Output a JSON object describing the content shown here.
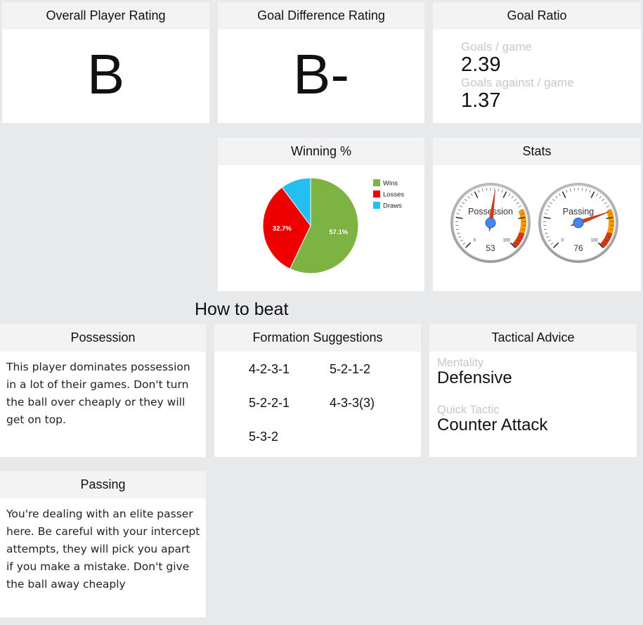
{
  "overall": {
    "title": "Overall Player Rating",
    "grade": "B"
  },
  "goal_diff": {
    "title": "Goal Difference Rating",
    "grade": "B-"
  },
  "goal_ratio": {
    "title": "Goal Ratio",
    "goals_label": "Goals / game",
    "goals_value": "2.39",
    "against_label": "Goals against / game",
    "against_value": "1.37"
  },
  "winning": {
    "title": "Winning %"
  },
  "stats": {
    "title": "Stats",
    "gauges": [
      {
        "label": "Possession",
        "value": "53",
        "min": "0",
        "max": "100"
      },
      {
        "label": "Passing",
        "value": "76",
        "min": "0",
        "max": "100"
      }
    ]
  },
  "how_to_beat": {
    "title": "How to beat"
  },
  "possession": {
    "title": "Possession",
    "text": "This player dominates possession in a lot of their games. Don't turn the ball over cheaply or they will get on top."
  },
  "formations": {
    "title": "Formation Suggestions",
    "items": [
      "4-2-3-1",
      "5-2-1-2",
      "5-2-2-1",
      "4-3-3(3)",
      "5-3-2"
    ]
  },
  "tactical": {
    "title": "Tactical Advice",
    "mentality_label": "Mentality",
    "mentality_value": "Defensive",
    "tactic_label": "Quick Tactic",
    "tactic_value": "Counter Attack"
  },
  "passing": {
    "title": "Passing",
    "text": "You're dealing with an elite passer here. Be careful with your intercept attempts, they will pick you apart if you make a mistake. Don't give the ball away cheaply"
  },
  "chart_data": {
    "type": "pie",
    "title": "Winning %",
    "categories": [
      "Wins",
      "Losses",
      "Draws"
    ],
    "values": [
      57.1,
      32.7,
      10.2
    ],
    "value_labels": [
      "57.1%",
      "32.7%",
      ""
    ],
    "colors": [
      "#7cb342",
      "#ee0000",
      "#22bff0"
    ],
    "legend": "right"
  },
  "colors": {
    "background": "#e8e9eb",
    "header": "#f3f3f3",
    "muted_label": "#c8c8c8",
    "gauge_red": "#dc3912",
    "gauge_orange": "#ff9900",
    "needle": "#dc3912",
    "needle_hub": "#4684ee"
  }
}
